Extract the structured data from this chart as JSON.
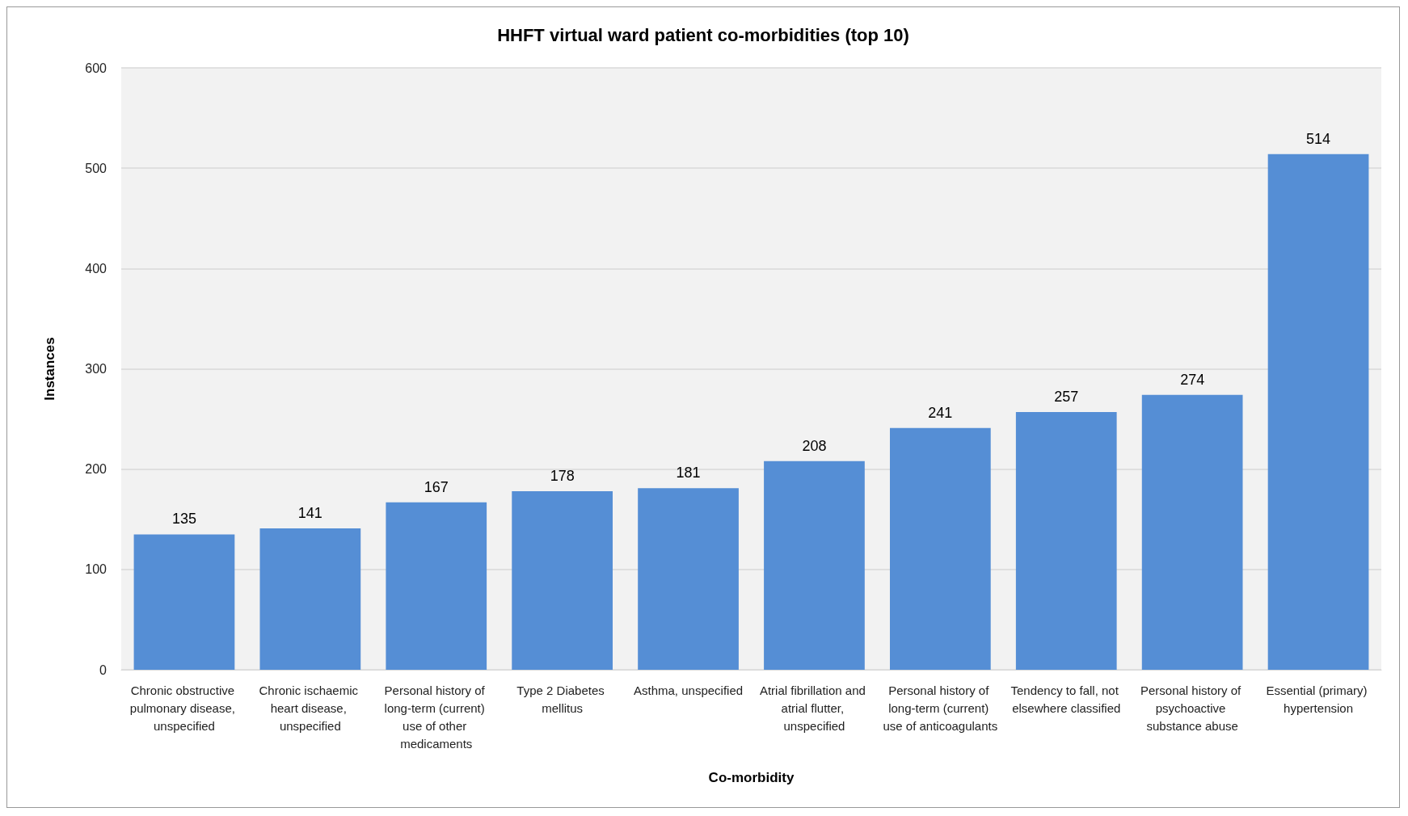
{
  "chart_data": {
    "type": "bar",
    "title": "HHFT virtual ward patient co-morbidities (top 10)",
    "xlabel": "Co-morbidity",
    "ylabel": "Instances",
    "categories": [
      "Chronic obstructive pulmonary disease, unspecified",
      "Chronic ischaemic heart disease, unspecified",
      "Personal history of long-term (current) use of other medicaments",
      "Type 2 Diabetes mellitus",
      "Asthma, unspecified",
      "Atrial fibrillation and atrial flutter, unspecified",
      "Personal history of long-term (current) use of anticoagulants",
      "Tendency to fall, not elsewhere classified",
      "Personal history of psychoactive substance abuse",
      "Essential (primary) hypertension"
    ],
    "values": [
      135,
      141,
      167,
      178,
      181,
      208,
      241,
      257,
      274,
      514
    ],
    "color": "#558ed5",
    "ylim": [
      0,
      600
    ],
    "yticks": [
      0,
      100,
      200,
      300,
      400,
      500,
      600
    ],
    "grid": "y",
    "data_labels": true
  }
}
